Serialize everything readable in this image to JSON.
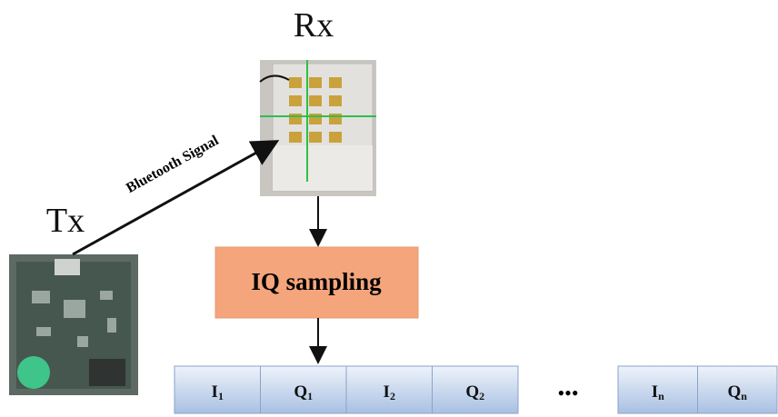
{
  "receiver": {
    "label": "Rx"
  },
  "transmitter": {
    "label": "Tx"
  },
  "link": {
    "label": "Bluetooth Signal"
  },
  "process": {
    "label": "IQ sampling"
  },
  "samples": {
    "cells": [
      {
        "main": "I",
        "sub": "1"
      },
      {
        "main": "Q",
        "sub": "1"
      },
      {
        "main": "I",
        "sub": "2"
      },
      {
        "main": "Q",
        "sub": "2"
      },
      {
        "main": "I",
        "sub": "n"
      },
      {
        "main": "Q",
        "sub": "n"
      }
    ],
    "ellipsis": "•••"
  }
}
